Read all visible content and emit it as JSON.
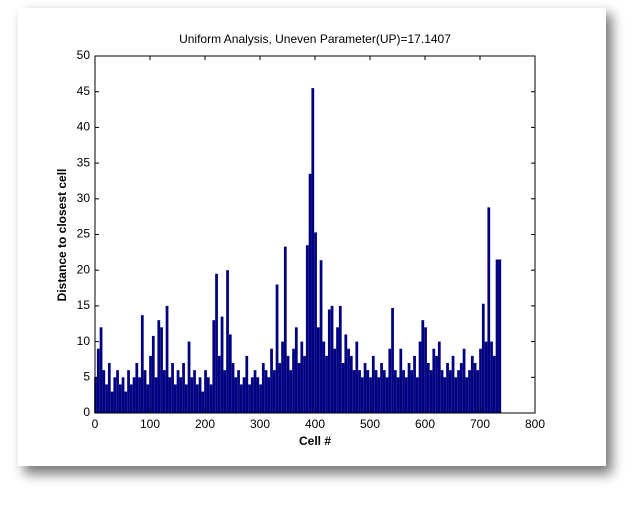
{
  "chart_data": {
    "type": "bar",
    "title": "Uniform Analysis, Uneven Parameter(UP)=17.1407",
    "xlabel": "Cell #",
    "ylabel": "Distance to closest cell",
    "color": "#000080",
    "x": [
      1,
      6,
      11,
      16,
      21,
      26,
      31,
      36,
      41,
      46,
      51,
      56,
      61,
      66,
      71,
      76,
      81,
      86,
      91,
      96,
      101,
      106,
      111,
      116,
      121,
      126,
      131,
      136,
      141,
      146,
      151,
      156,
      161,
      166,
      171,
      176,
      181,
      186,
      191,
      196,
      201,
      206,
      211,
      216,
      221,
      226,
      231,
      236,
      241,
      246,
      251,
      256,
      261,
      266,
      271,
      276,
      281,
      286,
      291,
      296,
      301,
      306,
      311,
      316,
      321,
      326,
      331,
      336,
      341,
      346,
      351,
      356,
      361,
      366,
      371,
      376,
      381,
      386,
      391,
      396,
      401,
      406,
      411,
      416,
      421,
      426,
      431,
      436,
      441,
      446,
      451,
      456,
      461,
      466,
      471,
      476,
      481,
      486,
      491,
      496,
      501,
      506,
      511,
      516,
      521,
      526,
      531,
      536,
      541,
      546,
      551,
      556,
      561,
      566,
      571,
      576,
      581,
      586,
      591,
      596,
      601,
      606,
      611,
      616,
      621,
      626,
      631,
      636,
      641,
      646,
      651,
      656,
      661,
      666,
      671,
      676,
      681,
      686,
      691,
      696,
      701,
      706,
      711,
      716,
      721,
      726,
      731,
      736
    ],
    "values": [
      5,
      9,
      12,
      6,
      4,
      7,
      3,
      5,
      6,
      4,
      5,
      3,
      6,
      4,
      5,
      7,
      5,
      13.7,
      6,
      4,
      8,
      10.8,
      5,
      13,
      12,
      6,
      15,
      5,
      7,
      4,
      6,
      5,
      7,
      4,
      10,
      5,
      6,
      4,
      5,
      3,
      6,
      5,
      4,
      13,
      19.5,
      8,
      13.5,
      6,
      20,
      11,
      7,
      5,
      6,
      4,
      5,
      8,
      4,
      5,
      6,
      5,
      4,
      7,
      6,
      5,
      9,
      6,
      18,
      7,
      10,
      23.3,
      8,
      6,
      9,
      12,
      7,
      10,
      8,
      23.5,
      33.5,
      45.5,
      25.3,
      12,
      21.4,
      10,
      8,
      14.5,
      15,
      9,
      12,
      15,
      7,
      11,
      9,
      8,
      6,
      10,
      6,
      5,
      7,
      6,
      5,
      8,
      6,
      5,
      7,
      6,
      5,
      9,
      14.7,
      6,
      5,
      9,
      6,
      5,
      7,
      6,
      8,
      5,
      10,
      13,
      12,
      7,
      6,
      9,
      8,
      10,
      6,
      5,
      7,
      6,
      8,
      5,
      6,
      7,
      9,
      5,
      6,
      8,
      7,
      6,
      9,
      15.3,
      10,
      28.8,
      10,
      8,
      21.5,
      21.5
    ],
    "xlim": [
      0,
      800
    ],
    "xticks": [
      0,
      100,
      200,
      300,
      400,
      500,
      600,
      700,
      800
    ],
    "ylim": [
      0,
      50
    ],
    "yticks": [
      0,
      5,
      10,
      15,
      20,
      25,
      30,
      35,
      40,
      45,
      50
    ]
  }
}
